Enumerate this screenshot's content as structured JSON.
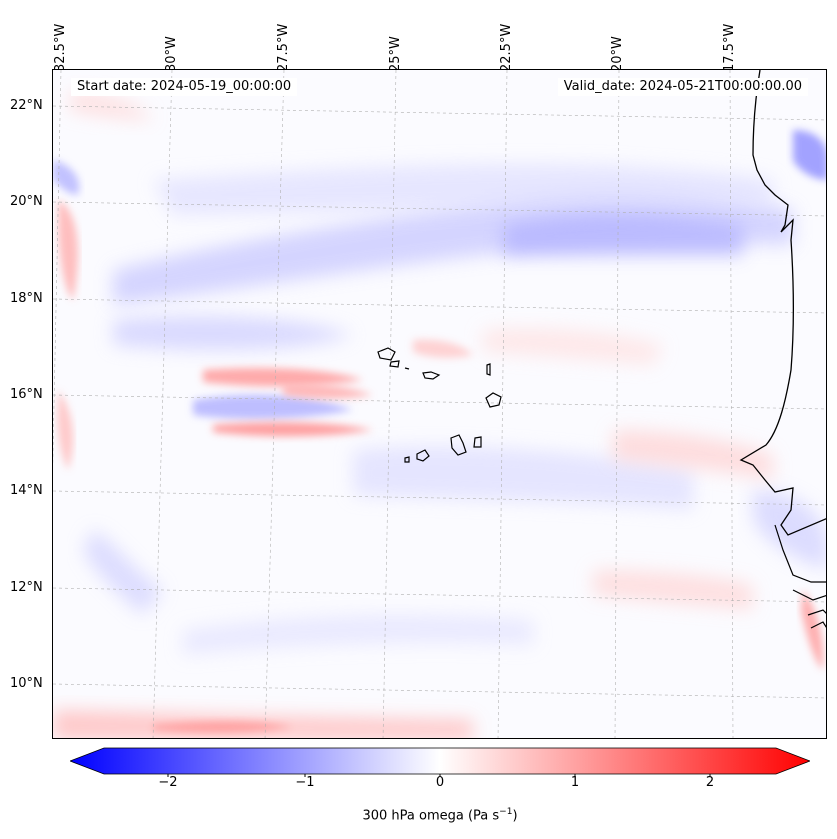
{
  "header": {
    "start_date": "Start date: 2024-05-19_00:00:00",
    "valid_date": "Valid_date: 2024-05-21T00:00:00.00"
  },
  "longitude_labels": [
    "32.5°W",
    "30°W",
    "27.5°W",
    "25°W",
    "22.5°W",
    "20°W",
    "17.5°W"
  ],
  "latitude_labels": [
    "22°N",
    "20°N",
    "18°N",
    "16°N",
    "14°N",
    "12°N",
    "10°N"
  ],
  "colorbar": {
    "title_prefix": "300 hPa omega (Pa s",
    "title_exponent": "−1",
    "title_suffix": ")",
    "tick_labels": [
      "−2",
      "−1",
      "0",
      "1",
      "2"
    ],
    "range": [
      -2.6,
      2.6
    ],
    "colors": {
      "negative": "#0000ff",
      "zero": "#ffffff",
      "positive": "#ff0000"
    }
  },
  "map": {
    "coastline_color": "#000000",
    "gridlines": true
  }
}
